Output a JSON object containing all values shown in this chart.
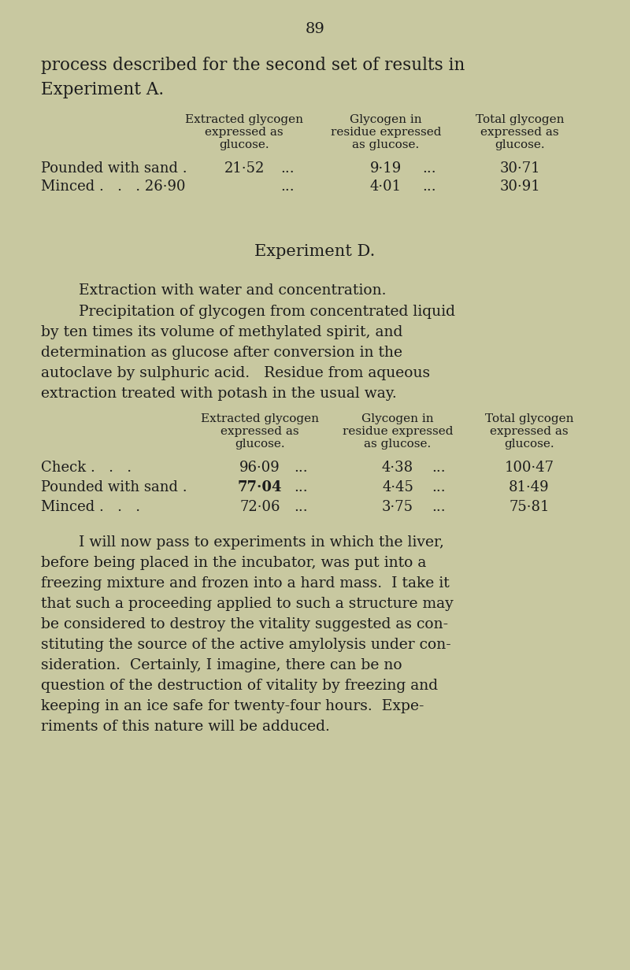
{
  "bg_color": "#c8c8a0",
  "text_color": "#1c1c1c",
  "figsize": [
    8.0,
    12.32
  ],
  "dpi": 100,
  "page_number": "89",
  "line1": "process described for the second set of results in",
  "line2": "Experiment A.",
  "tA_h1l1": "Extracted glycogen",
  "tA_h1l2": "expressed as",
  "tA_h1l3": "glucose.",
  "tA_h2l1": "Glycogen in",
  "tA_h2l2": "residue expressed",
  "tA_h2l3": "as glucose.",
  "tA_h3l1": "Total glycogen",
  "tA_h3l2": "expressed as",
  "tA_h3l3": "glucose.",
  "tA_r1_label": "Pounded with sand .",
  "tA_r1_c1": "21·52",
  "tA_r1_d1": "...",
  "tA_r1_c2": "9·19",
  "tA_r1_d2": "...",
  "tA_r1_c3": "30·71",
  "tA_r2_label": "Minced .   .   . 26·90",
  "tA_r2_d1": "...",
  "tA_r2_c2": "4·01",
  "tA_r2_d2": "...",
  "tA_r2_c3": "30·91",
  "exp_d_title": "Experiment D.",
  "para1": "Extraction with water and concentration.",
  "para2l1": "Precipitation of glycogen from concentrated liquid",
  "para2l2": "by ten times its volume of methylated spirit, and",
  "para2l3": "determination as glucose after conversion in the",
  "para2l4": "autoclave by sulphuric acid.   Residue from aqueous",
  "para2l5": "extraction treated with potash in the usual way.",
  "tD_h1l1": "Extracted glycogen",
  "tD_h1l2": "expressed as",
  "tD_h1l3": "glucose.",
  "tD_h2l1": "Glycogen in",
  "tD_h2l2": "residue expressed",
  "tD_h2l3": "as glucose.",
  "tD_h3l1": "Total glycogen",
  "tD_h3l2": "expressed as",
  "tD_h3l3": "glucose.",
  "tD_rC_label": "Check .   .   .",
  "tD_rC_c1": "96·09",
  "tD_rC_d1": "...",
  "tD_rC_c2": "4·38",
  "tD_rC_d2": "...",
  "tD_rC_c3": "100·47",
  "tD_r1_label": "Pounded with sand .",
  "tD_r1_c1": "77·04",
  "tD_r1_d1": "...",
  "tD_r1_c2": "4·45",
  "tD_r1_d2": "...",
  "tD_r1_c3": "81·49",
  "tD_r2_label": "Minced .   .   .",
  "tD_r2_c1": "72·06",
  "tD_r2_d1": "...",
  "tD_r2_c2": "3·75",
  "tD_r2_d2": "...",
  "tD_r2_c3": "75·81",
  "para3l1": "I will now pass to experiments in which the liver,",
  "para3l2": "before being placed in the incubator, was put into a",
  "para3l3": "freezing mixture and frozen into a hard mass.  I take it",
  "para3l4": "that such a proceeding applied to such a structure may",
  "para3l5": "be considered to destroy the vitality suggested as con-",
  "para3l6": "stituting the source of the active amylolysis under con-",
  "para3l7": "sideration.  Certainly, I imagine, there can be no",
  "para3l8": "question of the destruction of vitality by freezing and",
  "para3l9": "keeping in an ice safe for twenty-four hours.  Expe-",
  "para3l10": "riments of this nature will be adduced."
}
